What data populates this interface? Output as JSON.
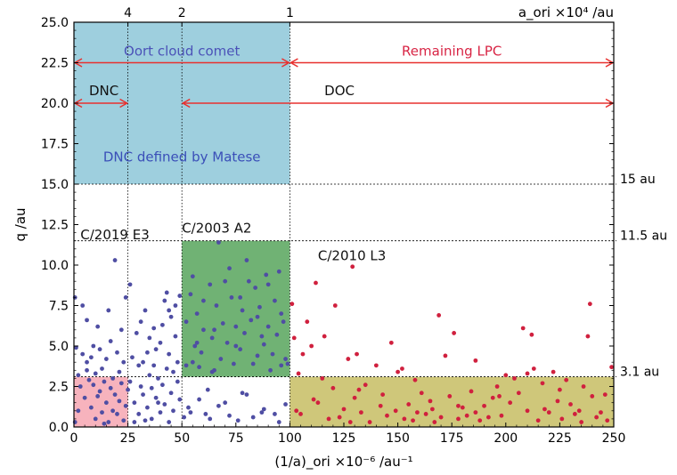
{
  "chart_data": {
    "type": "scatter",
    "xlabel": "(1/a)_ori ×10⁻⁶ /au⁻¹",
    "ylabel": "q /au",
    "top_axis_label": "a_ori ×10⁴ /au",
    "xlim": [
      0,
      250
    ],
    "ylim": [
      0,
      25
    ],
    "x_ticks": [
      "0",
      "25",
      "50",
      "75",
      "100",
      "125",
      "150",
      "175",
      "200",
      "225",
      "250"
    ],
    "y_ticks": [
      "0.0",
      "2.5",
      "5.0",
      "7.5",
      "10.0",
      "12.5",
      "15.0",
      "17.5",
      "20.0",
      "22.5",
      "25.0"
    ],
    "top_ticks": [
      {
        "label": "4",
        "x": 25
      },
      {
        "label": "2",
        "x": 50
      },
      {
        "label": "1",
        "x": 100
      }
    ],
    "right_labels": [
      {
        "text": "15 au",
        "y": 15
      },
      {
        "text": "11.5 au",
        "y": 11.5
      },
      {
        "text": "3.1 au",
        "y": 3.1
      }
    ],
    "grid": false,
    "regions": [
      {
        "x0": 0,
        "x1": 100,
        "y0": 15,
        "y1": 25,
        "color": "#9ecfde"
      },
      {
        "x0": 50,
        "x1": 100,
        "y0": 3.1,
        "y1": 11.5,
        "color": "#70b274"
      },
      {
        "x0": 0,
        "x1": 25,
        "y0": 0,
        "y1": 3.1,
        "color": "#f7b3bd"
      },
      {
        "x0": 100,
        "x1": 250,
        "y0": 0,
        "y1": 3.1,
        "color": "#cfc77a"
      }
    ],
    "hlines": [
      15,
      11.5,
      3.1
    ],
    "vlines": [
      25,
      50,
      100
    ],
    "arrows": [
      {
        "x0": 0,
        "x1": 100,
        "y": 22.5,
        "color": "#e8302e"
      },
      {
        "x0": 100,
        "x1": 250,
        "y": 22.5,
        "color": "#e8302e"
      },
      {
        "x0": 0,
        "x1": 25,
        "y": 20.0,
        "color": "#e8302e"
      },
      {
        "x0": 50,
        "x1": 250,
        "y": 20.0,
        "color": "#e8302e"
      }
    ],
    "annotations": [
      {
        "text": "Oort cloud comet",
        "x": 50,
        "y": 22.95,
        "color": "#4b52b8",
        "anchor": "middle"
      },
      {
        "text": "Remaining LPC",
        "x": 175,
        "y": 22.95,
        "color": "#d82444",
        "anchor": "middle"
      },
      {
        "text": "DNC",
        "x": 7,
        "y": 20.5,
        "color": "#111111",
        "anchor": "start"
      },
      {
        "text": "DOC",
        "x": 116,
        "y": 20.5,
        "color": "#111111",
        "anchor": "start"
      },
      {
        "text": "DNC defined by Matese",
        "x": 50,
        "y": 16.4,
        "color": "#3a4fb8",
        "anchor": "middle"
      },
      {
        "text": "C/2003 A2",
        "x": 50,
        "y": 12.0,
        "color": "#111111",
        "anchor": "start"
      },
      {
        "text": "C/2019 E3",
        "x": 3,
        "y": 11.6,
        "color": "#111111",
        "anchor": "start"
      },
      {
        "text": "C/2010 L3",
        "x": 113,
        "y": 10.3,
        "color": "#111111",
        "anchor": "start"
      }
    ],
    "series": [
      {
        "color": "#4f4ea3",
        "points": [
          [
            0.5,
            8.0
          ],
          [
            1,
            4.9
          ],
          [
            2,
            3.2
          ],
          [
            3,
            2.5
          ],
          [
            4,
            4.5
          ],
          [
            4,
            7.5
          ],
          [
            5,
            1.8
          ],
          [
            6,
            4.0
          ],
          [
            6,
            3.5
          ],
          [
            7,
            2.9
          ],
          [
            8,
            1.2
          ],
          [
            8,
            4.3
          ],
          [
            9,
            5.0
          ],
          [
            9,
            2.6
          ],
          [
            10,
            0.5
          ],
          [
            10,
            3.3
          ],
          [
            11,
            1.9
          ],
          [
            12,
            2.2
          ],
          [
            12,
            4.8
          ],
          [
            13,
            0.9
          ],
          [
            13,
            3.6
          ],
          [
            14,
            2.8
          ],
          [
            15,
            1.5
          ],
          [
            15,
            4.2
          ],
          [
            16,
            0.3
          ],
          [
            16,
            7.2
          ],
          [
            17,
            2.4
          ],
          [
            17,
            5.3
          ],
          [
            18,
            1.0
          ],
          [
            18,
            3.0
          ],
          [
            19,
            2.0
          ],
          [
            19,
            10.3
          ],
          [
            20,
            4.6
          ],
          [
            20,
            0.8
          ],
          [
            21,
            1.6
          ],
          [
            21,
            3.4
          ],
          [
            22,
            2.7
          ],
          [
            22,
            6.0
          ],
          [
            23,
            0.4
          ],
          [
            23,
            4.0
          ],
          [
            24,
            1.3
          ],
          [
            24,
            8.0
          ],
          [
            25,
            2.3
          ],
          [
            6,
            6.6
          ],
          [
            2,
            1.0
          ],
          [
            11,
            6.2
          ],
          [
            14,
            0.2
          ],
          [
            0.5,
            0.3
          ],
          [
            26,
            8.8
          ],
          [
            27,
            4.3
          ],
          [
            28,
            1.5
          ],
          [
            29,
            5.8
          ],
          [
            30,
            3.8
          ],
          [
            30,
            0.8
          ],
          [
            31,
            6.5
          ],
          [
            32,
            2.0
          ],
          [
            32,
            4.0
          ],
          [
            33,
            7.2
          ],
          [
            34,
            1.2
          ],
          [
            35,
            3.2
          ],
          [
            35,
            5.5
          ],
          [
            36,
            0.5
          ],
          [
            36,
            2.4
          ],
          [
            37,
            6.1
          ],
          [
            38,
            1.8
          ],
          [
            38,
            4.8
          ],
          [
            39,
            3.0
          ],
          [
            40,
            0.9
          ],
          [
            40,
            5.2
          ],
          [
            41,
            2.6
          ],
          [
            42,
            7.8
          ],
          [
            42,
            1.4
          ],
          [
            43,
            8.3
          ],
          [
            43,
            3.6
          ],
          [
            44,
            0.3
          ],
          [
            44,
            4.5
          ],
          [
            45,
            2.1
          ],
          [
            45,
            6.8
          ],
          [
            46,
            1.0
          ],
          [
            46,
            3.4
          ],
          [
            47,
            5.6
          ],
          [
            47,
            7.5
          ],
          [
            48,
            2.8
          ],
          [
            48,
            4.0
          ],
          [
            49,
            1.7
          ],
          [
            49,
            8.1
          ],
          [
            26,
            2.8
          ],
          [
            28,
            0.3
          ],
          [
            33,
            0.4
          ],
          [
            39,
            1.5
          ],
          [
            41,
            6.3
          ],
          [
            44,
            7.2
          ],
          [
            37,
            3.8
          ],
          [
            34,
            4.6
          ],
          [
            31,
            2.5
          ],
          [
            51,
            0.6
          ],
          [
            52,
            3.8
          ],
          [
            52,
            6.5
          ],
          [
            53,
            1.2
          ],
          [
            54,
            8.2
          ],
          [
            55,
            9.3
          ],
          [
            56,
            5.0
          ],
          [
            57,
            7.0
          ],
          [
            58,
            3.7
          ],
          [
            59,
            4.6
          ],
          [
            60,
            6.0
          ],
          [
            61,
            0.8
          ],
          [
            62,
            2.3
          ],
          [
            63,
            8.8
          ],
          [
            64,
            5.5
          ],
          [
            65,
            3.5
          ],
          [
            66,
            7.5
          ],
          [
            67,
            11.4
          ],
          [
            68,
            4.2
          ],
          [
            69,
            6.4
          ],
          [
            70,
            1.5
          ],
          [
            71,
            5.2
          ],
          [
            72,
            9.8
          ],
          [
            73,
            8.0
          ],
          [
            74,
            3.9
          ],
          [
            75,
            6.2
          ],
          [
            76,
            0.4
          ],
          [
            77,
            4.8
          ],
          [
            78,
            7.2
          ],
          [
            79,
            5.8
          ],
          [
            80,
            2.0
          ],
          [
            81,
            9.0
          ],
          [
            82,
            6.6
          ],
          [
            83,
            3.9
          ],
          [
            84,
            8.6
          ],
          [
            85,
            4.4
          ],
          [
            86,
            7.4
          ],
          [
            87,
            0.9
          ],
          [
            88,
            5.1
          ],
          [
            89,
            9.4
          ],
          [
            90,
            6.2
          ],
          [
            91,
            3.5
          ],
          [
            92,
            4.5
          ],
          [
            93,
            7.8
          ],
          [
            94,
            5.7
          ],
          [
            95,
            0.3
          ],
          [
            96,
            3.8
          ],
          [
            97,
            6.5
          ],
          [
            98,
            4.2
          ],
          [
            99,
            3.9
          ],
          [
            54,
            0.9
          ],
          [
            58,
            1.7
          ],
          [
            63,
            0.5
          ],
          [
            67,
            1.3
          ],
          [
            72,
            0.7
          ],
          [
            78,
            2.1
          ],
          [
            83,
            0.6
          ],
          [
            88,
            1.1
          ],
          [
            93,
            0.8
          ],
          [
            98,
            1.4
          ],
          [
            55,
            4.0
          ],
          [
            60,
            7.8
          ],
          [
            70,
            9.0
          ],
          [
            80,
            10.3
          ],
          [
            90,
            8.8
          ],
          [
            75,
            5.0
          ],
          [
            65,
            6.0
          ],
          [
            85,
            6.8
          ],
          [
            95,
            9.6
          ],
          [
            57,
            5.2
          ],
          [
            77,
            8.0
          ],
          [
            87,
            5.6
          ],
          [
            96,
            7.0
          ],
          [
            64,
            3.4
          ]
        ]
      },
      {
        "color": "#d0203e",
        "points": [
          [
            101,
            7.6
          ],
          [
            102,
            5.5
          ],
          [
            104,
            3.3
          ],
          [
            105,
            0.8
          ],
          [
            106,
            4.5
          ],
          [
            108,
            6.5
          ],
          [
            110,
            5.0
          ],
          [
            112,
            8.9
          ],
          [
            113,
            1.5
          ],
          [
            115,
            3.0
          ],
          [
            116,
            5.6
          ],
          [
            118,
            0.5
          ],
          [
            120,
            2.4
          ],
          [
            121,
            7.5
          ],
          [
            123,
            0.6
          ],
          [
            125,
            1.1
          ],
          [
            127,
            4.2
          ],
          [
            129,
            9.9
          ],
          [
            130,
            1.8
          ],
          [
            131,
            4.5
          ],
          [
            133,
            0.9
          ],
          [
            135,
            2.6
          ],
          [
            137,
            0.3
          ],
          [
            140,
            3.8
          ],
          [
            142,
            1.3
          ],
          [
            145,
            0.7
          ],
          [
            147,
            5.2
          ],
          [
            149,
            1.0
          ],
          [
            150,
            3.4
          ],
          [
            152,
            3.6
          ],
          [
            153,
            0.5
          ],
          [
            155,
            1.4
          ],
          [
            157,
            0.4
          ],
          [
            159,
            0.9
          ],
          [
            161,
            2.1
          ],
          [
            163,
            0.8
          ],
          [
            165,
            1.6
          ],
          [
            167,
            0.3
          ],
          [
            169,
            6.9
          ],
          [
            170,
            0.6
          ],
          [
            172,
            4.4
          ],
          [
            174,
            1.9
          ],
          [
            176,
            5.8
          ],
          [
            178,
            0.5
          ],
          [
            180,
            1.2
          ],
          [
            182,
            0.7
          ],
          [
            184,
            2.2
          ],
          [
            186,
            0.9
          ],
          [
            188,
            0.4
          ],
          [
            190,
            1.3
          ],
          [
            192,
            0.6
          ],
          [
            194,
            1.8
          ],
          [
            196,
            2.5
          ],
          [
            198,
            0.7
          ],
          [
            200,
            3.2
          ],
          [
            202,
            1.5
          ],
          [
            204,
            3.0
          ],
          [
            206,
            2.1
          ],
          [
            208,
            6.1
          ],
          [
            210,
            1.0
          ],
          [
            212,
            5.7
          ],
          [
            213,
            3.6
          ],
          [
            215,
            0.4
          ],
          [
            218,
            1.1
          ],
          [
            220,
            0.9
          ],
          [
            222,
            3.4
          ],
          [
            224,
            1.6
          ],
          [
            226,
            0.5
          ],
          [
            228,
            2.9
          ],
          [
            230,
            1.4
          ],
          [
            232,
            0.8
          ],
          [
            234,
            1.0
          ],
          [
            236,
            2.5
          ],
          [
            238,
            5.6
          ],
          [
            239,
            7.6
          ],
          [
            240,
            1.9
          ],
          [
            242,
            0.6
          ],
          [
            244,
            0.9
          ],
          [
            247,
            0.4
          ],
          [
            249,
            3.7
          ],
          [
            246,
            2.0
          ],
          [
            132,
            2.3
          ],
          [
            158,
            2.9
          ],
          [
            178,
            1.3
          ],
          [
            210,
            3.3
          ],
          [
            225,
            2.3
          ],
          [
            186,
            4.1
          ],
          [
            103,
            1.0
          ],
          [
            111,
            1.7
          ],
          [
            128,
            0.3
          ],
          [
            143,
            2.0
          ],
          [
            166,
            1.1
          ],
          [
            197,
            1.9
          ],
          [
            217,
            2.7
          ],
          [
            235,
            0.3
          ]
        ]
      }
    ]
  }
}
